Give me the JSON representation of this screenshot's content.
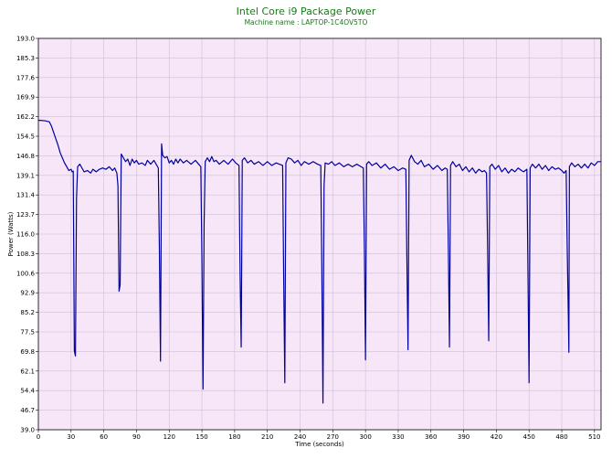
{
  "colors": {
    "title": "#1a7a1a",
    "subtitle": "#1a7a1a",
    "plot_bg": "#f6e6f8",
    "grid": "#cfc0d4",
    "line": "#00009c",
    "axis": "#000000"
  },
  "chart_data": {
    "type": "line",
    "title": "Intel Core i9 Package Power",
    "subtitle": "Machine name : LAPTOP-1C4OV5TO",
    "xlabel": "Time (seconds)",
    "ylabel": "Power (Watts)",
    "xlim": [
      0,
      516
    ],
    "ylim": [
      39.0,
      193.0
    ],
    "grid": true,
    "x_ticks": [
      "0",
      "30",
      "60",
      "90",
      "120",
      "150",
      "180",
      "210",
      "240",
      "270",
      "300",
      "330",
      "360",
      "390",
      "420",
      "450",
      "480",
      "510"
    ],
    "y_ticks": [
      "39.0",
      "46.7",
      "54.4",
      "62.1",
      "69.8",
      "77.5",
      "85.2",
      "92.9",
      "100.6",
      "108.3",
      "116.0",
      "123.7",
      "131.4",
      "139.1",
      "146.8",
      "154.5",
      "162.2",
      "169.9",
      "177.6",
      "185.3",
      "193.0"
    ],
    "series": [
      {
        "values": [
          [
            0,
            160.8
          ],
          [
            6,
            160.6
          ],
          [
            10,
            160.2
          ],
          [
            12,
            158.5
          ],
          [
            14,
            156.0
          ],
          [
            16,
            153.5
          ],
          [
            18,
            151.0
          ],
          [
            20,
            148.0
          ],
          [
            22,
            146.0
          ],
          [
            24,
            144.0
          ],
          [
            26,
            142.5
          ],
          [
            28,
            141.0
          ],
          [
            30,
            141.5
          ],
          [
            31,
            140.5
          ],
          [
            32,
            140.8
          ],
          [
            33,
            70.0
          ],
          [
            34,
            68.0
          ],
          [
            35,
            130.0
          ],
          [
            36,
            142.5
          ],
          [
            38,
            143.5
          ],
          [
            40,
            142.0
          ],
          [
            42,
            140.5
          ],
          [
            45,
            141.0
          ],
          [
            48,
            140.0
          ],
          [
            50,
            141.5
          ],
          [
            53,
            140.5
          ],
          [
            56,
            141.5
          ],
          [
            59,
            142.0
          ],
          [
            62,
            141.5
          ],
          [
            65,
            142.5
          ],
          [
            68,
            141.0
          ],
          [
            70,
            142.0
          ],
          [
            72,
            140.0
          ],
          [
            73,
            135.0
          ],
          [
            74,
            93.5
          ],
          [
            75,
            96.0
          ],
          [
            76,
            147.5
          ],
          [
            78,
            146.0
          ],
          [
            80,
            144.5
          ],
          [
            82,
            145.5
          ],
          [
            84,
            143.0
          ],
          [
            86,
            145.5
          ],
          [
            88,
            144.0
          ],
          [
            90,
            145.0
          ],
          [
            92,
            143.5
          ],
          [
            95,
            144.0
          ],
          [
            98,
            143.0
          ],
          [
            100,
            145.0
          ],
          [
            103,
            143.5
          ],
          [
            106,
            145.0
          ],
          [
            108,
            143.5
          ],
          [
            110,
            142.0
          ],
          [
            111,
            110.0
          ],
          [
            112,
            66.0
          ],
          [
            113,
            151.5
          ],
          [
            114,
            147.0
          ],
          [
            116,
            146.0
          ],
          [
            118,
            146.5
          ],
          [
            120,
            144.0
          ],
          [
            122,
            145.0
          ],
          [
            124,
            143.5
          ],
          [
            126,
            145.5
          ],
          [
            128,
            144.0
          ],
          [
            130,
            145.5
          ],
          [
            133,
            144.0
          ],
          [
            136,
            145.0
          ],
          [
            140,
            143.5
          ],
          [
            144,
            145.0
          ],
          [
            147,
            143.5
          ],
          [
            149,
            142.5
          ],
          [
            150,
            105.0
          ],
          [
            151,
            55.0
          ],
          [
            152,
            120.0
          ],
          [
            153,
            144.5
          ],
          [
            155,
            146.0
          ],
          [
            157,
            144.5
          ],
          [
            159,
            146.5
          ],
          [
            161,
            144.5
          ],
          [
            163,
            145.0
          ],
          [
            166,
            143.5
          ],
          [
            170,
            145.0
          ],
          [
            174,
            143.5
          ],
          [
            178,
            145.5
          ],
          [
            181,
            144.0
          ],
          [
            184,
            143.0
          ],
          [
            185,
            100.0
          ],
          [
            186,
            71.5
          ],
          [
            187,
            145.0
          ],
          [
            189,
            146.0
          ],
          [
            192,
            144.0
          ],
          [
            195,
            145.0
          ],
          [
            198,
            143.5
          ],
          [
            202,
            144.5
          ],
          [
            206,
            143.0
          ],
          [
            210,
            144.5
          ],
          [
            214,
            143.0
          ],
          [
            218,
            144.0
          ],
          [
            221,
            143.5
          ],
          [
            224,
            143.0
          ],
          [
            225,
            98.0
          ],
          [
            226,
            57.5
          ],
          [
            227,
            144.0
          ],
          [
            229,
            146.0
          ],
          [
            232,
            145.5
          ],
          [
            235,
            144.0
          ],
          [
            238,
            145.0
          ],
          [
            241,
            143.0
          ],
          [
            244,
            144.5
          ],
          [
            248,
            143.5
          ],
          [
            252,
            144.5
          ],
          [
            256,
            143.5
          ],
          [
            259,
            143.0
          ],
          [
            260,
            100.0
          ],
          [
            261,
            49.5
          ],
          [
            262,
            135.0
          ],
          [
            263,
            144.0
          ],
          [
            266,
            143.5
          ],
          [
            269,
            144.5
          ],
          [
            272,
            143.0
          ],
          [
            276,
            144.0
          ],
          [
            280,
            142.5
          ],
          [
            284,
            143.5
          ],
          [
            288,
            142.5
          ],
          [
            292,
            143.5
          ],
          [
            296,
            142.5
          ],
          [
            298,
            142.0
          ],
          [
            299,
            110.0
          ],
          [
            300,
            66.5
          ],
          [
            301,
            143.5
          ],
          [
            303,
            144.5
          ],
          [
            306,
            143.0
          ],
          [
            310,
            144.0
          ],
          [
            314,
            142.0
          ],
          [
            318,
            143.5
          ],
          [
            322,
            141.5
          ],
          [
            326,
            142.5
          ],
          [
            330,
            141.0
          ],
          [
            334,
            142.0
          ],
          [
            337,
            141.5
          ],
          [
            338,
            105.0
          ],
          [
            339,
            70.5
          ],
          [
            340,
            145.0
          ],
          [
            342,
            147.0
          ],
          [
            345,
            144.5
          ],
          [
            348,
            143.5
          ],
          [
            351,
            145.0
          ],
          [
            354,
            142.5
          ],
          [
            358,
            143.5
          ],
          [
            362,
            141.5
          ],
          [
            366,
            143.0
          ],
          [
            370,
            141.0
          ],
          [
            373,
            142.0
          ],
          [
            375,
            141.5
          ],
          [
            376,
            110.0
          ],
          [
            377,
            71.5
          ],
          [
            378,
            143.0
          ],
          [
            380,
            144.5
          ],
          [
            383,
            142.5
          ],
          [
            386,
            143.5
          ],
          [
            389,
            141.0
          ],
          [
            392,
            142.5
          ],
          [
            395,
            140.5
          ],
          [
            398,
            142.0
          ],
          [
            401,
            140.0
          ],
          [
            404,
            141.5
          ],
          [
            407,
            140.5
          ],
          [
            409,
            141.0
          ],
          [
            411,
            140.0
          ],
          [
            412,
            110.0
          ],
          [
            413,
            74.0
          ],
          [
            414,
            142.5
          ],
          [
            416,
            143.5
          ],
          [
            419,
            141.5
          ],
          [
            422,
            143.0
          ],
          [
            425,
            140.5
          ],
          [
            428,
            142.0
          ],
          [
            431,
            140.0
          ],
          [
            434,
            141.5
          ],
          [
            437,
            140.5
          ],
          [
            440,
            142.0
          ],
          [
            443,
            141.0
          ],
          [
            445,
            140.5
          ],
          [
            448,
            141.5
          ],
          [
            449,
            100.0
          ],
          [
            450,
            57.5
          ],
          [
            451,
            142.0
          ],
          [
            453,
            143.5
          ],
          [
            456,
            142.0
          ],
          [
            459,
            143.5
          ],
          [
            462,
            141.5
          ],
          [
            465,
            143.0
          ],
          [
            468,
            141.0
          ],
          [
            471,
            142.5
          ],
          [
            474,
            141.5
          ],
          [
            477,
            142.0
          ],
          [
            480,
            141.0
          ],
          [
            482,
            140.0
          ],
          [
            484,
            141.0
          ],
          [
            485,
            110.0
          ],
          [
            486,
            84.0
          ],
          [
            486.5,
            69.5
          ],
          [
            487,
            142.5
          ],
          [
            489,
            144.0
          ],
          [
            492,
            142.5
          ],
          [
            495,
            143.5
          ],
          [
            498,
            142.0
          ],
          [
            501,
            143.5
          ],
          [
            504,
            142.0
          ],
          [
            507,
            144.0
          ],
          [
            510,
            143.0
          ],
          [
            513,
            144.5
          ],
          [
            516,
            144.5
          ]
        ]
      }
    ]
  }
}
